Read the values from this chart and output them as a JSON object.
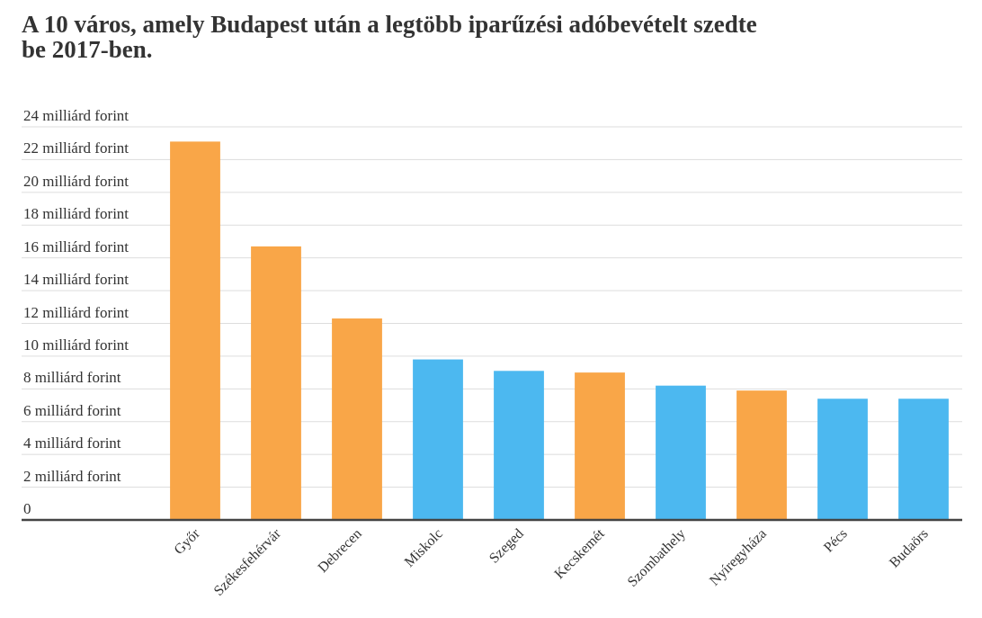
{
  "chart_data": {
    "type": "bar",
    "title": "A 10 város, amely Budapest után a legtöbb iparűzési adóbevételt szedte be 2017-ben.",
    "categories": [
      "Győr",
      "Székesfehérvár",
      "Debrecen",
      "Miskolc",
      "Szeged",
      "Kecskemét",
      "Szombathely",
      "Nyíregyháza",
      "Pécs",
      "Budaörs"
    ],
    "values": [
      23.1,
      16.7,
      12.3,
      9.8,
      9.1,
      9.0,
      8.2,
      7.9,
      7.4,
      7.4
    ],
    "colors": [
      "#f9a648",
      "#f9a648",
      "#f9a648",
      "#4cb8f0",
      "#4cb8f0",
      "#f9a648",
      "#4cb8f0",
      "#f9a648",
      "#4cb8f0",
      "#4cb8f0"
    ],
    "ylim": [
      0,
      24
    ],
    "yticks": [
      0,
      {
        "value": 2,
        "label": "2 milliárd forint"
      },
      {
        "value": 4,
        "label": "4 milliárd forint"
      },
      {
        "value": 6,
        "label": "6 milliárd forint"
      },
      {
        "value": 8,
        "label": "8 milliárd forint"
      },
      {
        "value": 10,
        "label": "10 milliárd forint"
      },
      {
        "value": 12,
        "label": "12 milliárd forint"
      },
      {
        "value": 14,
        "label": "14 milliárd forint"
      },
      {
        "value": 16,
        "label": "16 milliárd forint"
      },
      {
        "value": 18,
        "label": "18 milliárd forint"
      },
      {
        "value": 20,
        "label": "20 milliárd forint"
      },
      {
        "value": 22,
        "label": "22 milliárd forint"
      },
      {
        "value": 24,
        "label": "24 milliárd forint"
      }
    ],
    "grid": "y"
  }
}
